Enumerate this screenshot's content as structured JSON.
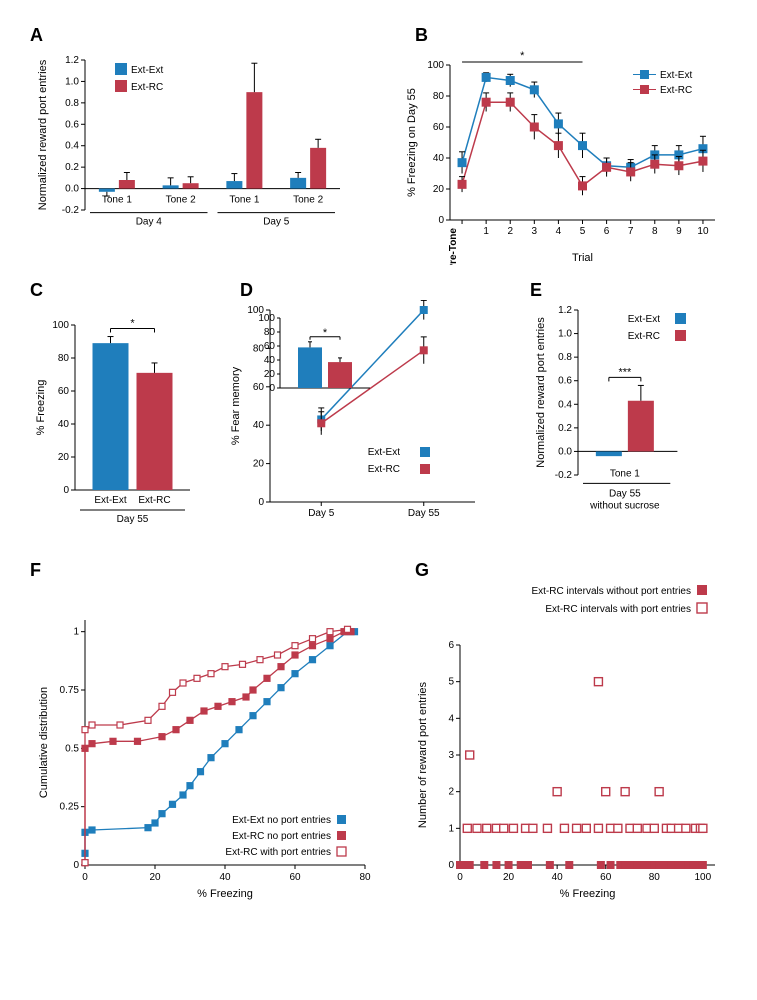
{
  "colors": {
    "extext": "#1f7ebc",
    "extrc": "#bd3a4b",
    "black": "#000000",
    "white": "#ffffff"
  },
  "legend_labels": {
    "extext": "Ext-Ext",
    "extrc": "Ext-RC"
  },
  "panelA": {
    "label": "A",
    "ylabel": "Normalized reward port entries",
    "ylim": [
      -0.2,
      1.2
    ],
    "ytick_step": 0.2,
    "groups": [
      "Tone 1",
      "Tone 2",
      "Tone 1",
      "Tone 2"
    ],
    "day_labels": [
      "Day 4",
      "Day 5"
    ],
    "series": {
      "extext": {
        "values": [
          -0.03,
          0.03,
          0.07,
          0.1
        ],
        "err": [
          0.04,
          0.07,
          0.07,
          0.05
        ]
      },
      "extrc": {
        "values": [
          0.08,
          0.05,
          0.9,
          0.38
        ],
        "err": [
          0.07,
          0.06,
          0.27,
          0.08
        ]
      }
    }
  },
  "panelB": {
    "label": "B",
    "ylabel": "% Freezing on Day 55",
    "xlabel": "Trial",
    "ylim": [
      0,
      100
    ],
    "ytick_step": 20,
    "x_categories": [
      "Pre-Tone",
      "1",
      "2",
      "3",
      "4",
      "5",
      "6",
      "7",
      "8",
      "9",
      "10"
    ],
    "sig_range": [
      0,
      5
    ],
    "series": {
      "extext": {
        "values": [
          37,
          92,
          90,
          84,
          62,
          48,
          35,
          34,
          42,
          42,
          46
        ],
        "err": [
          7,
          3,
          4,
          5,
          7,
          8,
          5,
          5,
          6,
          6,
          8
        ]
      },
      "extrc": {
        "values": [
          23,
          76,
          76,
          60,
          48,
          22,
          34,
          31,
          36,
          35,
          38
        ],
        "err": [
          5,
          6,
          6,
          8,
          8,
          6,
          6,
          6,
          6,
          6,
          7
        ]
      }
    }
  },
  "panelC": {
    "label": "C",
    "ylabel": "% Freezing",
    "xlabel": "Day 55",
    "ylim": [
      0,
      100
    ],
    "ytick_step": 20,
    "bars": {
      "extext": {
        "value": 89,
        "err": 4
      },
      "extrc": {
        "value": 71,
        "err": 6
      }
    },
    "sig": "*"
  },
  "panelD": {
    "label": "D",
    "ylabel": "% Fear memory",
    "ylim": [
      0,
      100
    ],
    "ytick_step": 20,
    "x_categories": [
      "Day 5",
      "Day 55"
    ],
    "series": {
      "extext": {
        "values": [
          43,
          100
        ],
        "err": [
          6,
          5
        ]
      },
      "extrc": {
        "values": [
          41,
          79
        ],
        "err": [
          6,
          7
        ]
      }
    },
    "inset": {
      "ylim": [
        0,
        100
      ],
      "ytick_step": 20,
      "bars": {
        "extext": {
          "value": 58,
          "err": 8
        },
        "extrc": {
          "value": 37,
          "err": 6
        }
      },
      "sig": "*"
    }
  },
  "panelE": {
    "label": "E",
    "ylabel": "Normalized reward port entries",
    "xlabel_top": "Tone 1",
    "xlabel_bottom": "Day 55\nwithout sucrose",
    "ylim": [
      -0.2,
      1.2
    ],
    "ytick_step": 0.2,
    "bars": {
      "extext": {
        "value": -0.04,
        "err": 0.0
      },
      "extrc": {
        "value": 0.43,
        "err": 0.13
      }
    },
    "sig": "***"
  },
  "panelF": {
    "label": "F",
    "xlabel": "% Freezing",
    "ylabel": "Cumulative distribution",
    "xlim": [
      0,
      80
    ],
    "xtick_step": 20,
    "ylim": [
      0,
      1.05
    ],
    "yticks": [
      0,
      0.25,
      0.5,
      0.75,
      1
    ],
    "legend": {
      "a": "Ext-Ext no port entries",
      "b": "Ext-RC no port entries",
      "c": "Ext-RC with port entries"
    },
    "series": {
      "extext_no": [
        [
          0,
          0.05
        ],
        [
          0,
          0.14
        ],
        [
          2,
          0.15
        ],
        [
          18,
          0.16
        ],
        [
          20,
          0.18
        ],
        [
          22,
          0.22
        ],
        [
          25,
          0.26
        ],
        [
          28,
          0.3
        ],
        [
          30,
          0.34
        ],
        [
          33,
          0.4
        ],
        [
          36,
          0.46
        ],
        [
          40,
          0.52
        ],
        [
          44,
          0.58
        ],
        [
          48,
          0.64
        ],
        [
          52,
          0.7
        ],
        [
          56,
          0.76
        ],
        [
          60,
          0.82
        ],
        [
          65,
          0.88
        ],
        [
          70,
          0.94
        ],
        [
          75,
          1.0
        ],
        [
          77,
          1.0
        ]
      ],
      "extrc_no": [
        [
          0,
          0.01
        ],
        [
          0,
          0.5
        ],
        [
          2,
          0.52
        ],
        [
          8,
          0.53
        ],
        [
          15,
          0.53
        ],
        [
          22,
          0.55
        ],
        [
          26,
          0.58
        ],
        [
          30,
          0.62
        ],
        [
          34,
          0.66
        ],
        [
          38,
          0.68
        ],
        [
          42,
          0.7
        ],
        [
          46,
          0.72
        ],
        [
          48,
          0.75
        ],
        [
          52,
          0.8
        ],
        [
          56,
          0.85
        ],
        [
          60,
          0.9
        ],
        [
          65,
          0.94
        ],
        [
          70,
          0.97
        ],
        [
          74,
          1.0
        ],
        [
          76,
          1.0
        ]
      ],
      "extrc_with": [
        [
          0,
          0.01
        ],
        [
          0,
          0.58
        ],
        [
          2,
          0.6
        ],
        [
          10,
          0.6
        ],
        [
          18,
          0.62
        ],
        [
          22,
          0.68
        ],
        [
          25,
          0.74
        ],
        [
          28,
          0.78
        ],
        [
          32,
          0.8
        ],
        [
          36,
          0.82
        ],
        [
          40,
          0.85
        ],
        [
          45,
          0.86
        ],
        [
          50,
          0.88
        ],
        [
          55,
          0.9
        ],
        [
          60,
          0.94
        ],
        [
          65,
          0.97
        ],
        [
          70,
          1.0
        ],
        [
          75,
          1.01
        ]
      ]
    }
  },
  "panelG": {
    "label": "G",
    "xlabel": "% Freezing",
    "ylabel": "Number of reward port entries",
    "xlim": [
      0,
      105
    ],
    "xtick_step": 20,
    "ylim": [
      0,
      6
    ],
    "ytick_step": 1,
    "legend": {
      "filled": "Ext-RC intervals without port entries",
      "open": "Ext-RC intervals with port entries"
    },
    "points_filled": [
      [
        0,
        0
      ],
      [
        2,
        0
      ],
      [
        4,
        0
      ],
      [
        10,
        0
      ],
      [
        15,
        0
      ],
      [
        20,
        0
      ],
      [
        25,
        0
      ],
      [
        28,
        0
      ],
      [
        37,
        0
      ],
      [
        45,
        0
      ],
      [
        58,
        0
      ],
      [
        62,
        0
      ],
      [
        66,
        0
      ],
      [
        68,
        0
      ],
      [
        70,
        0
      ],
      [
        73,
        0
      ],
      [
        76,
        0
      ],
      [
        78,
        0
      ],
      [
        80,
        0
      ],
      [
        82,
        0
      ],
      [
        85,
        0
      ],
      [
        87,
        0
      ],
      [
        90,
        0
      ],
      [
        92,
        0
      ],
      [
        94,
        0
      ],
      [
        96,
        0
      ],
      [
        98,
        0
      ],
      [
        100,
        0
      ]
    ],
    "points_open": [
      [
        3,
        1
      ],
      [
        4,
        3
      ],
      [
        7,
        1
      ],
      [
        11,
        1
      ],
      [
        15,
        1
      ],
      [
        18,
        1
      ],
      [
        22,
        1
      ],
      [
        27,
        1
      ],
      [
        30,
        1
      ],
      [
        36,
        1
      ],
      [
        40,
        2
      ],
      [
        43,
        1
      ],
      [
        48,
        1
      ],
      [
        52,
        1
      ],
      [
        57,
        5
      ],
      [
        57,
        1
      ],
      [
        60,
        2
      ],
      [
        62,
        1
      ],
      [
        65,
        1
      ],
      [
        68,
        2
      ],
      [
        70,
        1
      ],
      [
        73,
        1
      ],
      [
        77,
        1
      ],
      [
        80,
        1
      ],
      [
        82,
        2
      ],
      [
        85,
        1
      ],
      [
        87,
        1
      ],
      [
        90,
        1
      ],
      [
        93,
        1
      ],
      [
        97,
        1
      ],
      [
        99,
        1
      ],
      [
        100,
        1
      ]
    ]
  }
}
